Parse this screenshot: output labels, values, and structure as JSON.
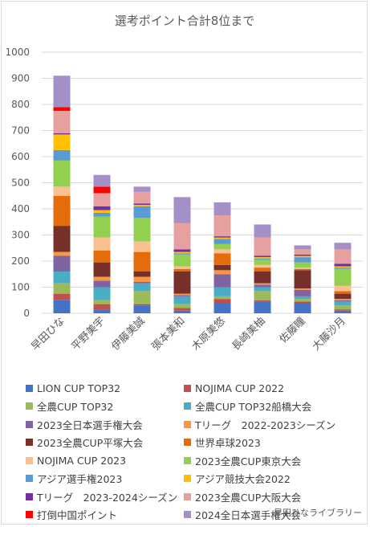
{
  "footer": "早田ひなライブラリー",
  "chart_data": {
    "type": "bar",
    "stacked": true,
    "title": "選考ポイント合計8位まで",
    "ylim": [
      0,
      1000
    ],
    "yticks": [
      0,
      100,
      200,
      300,
      400,
      500,
      600,
      700,
      800,
      900,
      1000
    ],
    "grid": true,
    "legend_position": "bottom",
    "categories": [
      "早田ひな",
      "平野美宇",
      "伊藤美誠",
      "張本美和",
      "木原美悠",
      "長崎美柚",
      "佐藤瞳",
      "大藤沙月"
    ],
    "series": [
      {
        "name": "LION CUP TOP32",
        "color": "#4472c4",
        "values": [
          50,
          15,
          30,
          10,
          40,
          45,
          40,
          10
        ]
      },
      {
        "name": "NOJIMA CUP 2022",
        "color": "#c0504d",
        "values": [
          25,
          20,
          5,
          10,
          15,
          5,
          5,
          5
        ]
      },
      {
        "name": "全農CUP TOP32",
        "color": "#9bbb59",
        "values": [
          40,
          15,
          50,
          15,
          10,
          35,
          10,
          15
        ]
      },
      {
        "name": "全農CUP TOP32船橋大会",
        "color": "#4bacc6",
        "values": [
          45,
          50,
          30,
          30,
          35,
          15,
          10,
          15
        ]
      },
      {
        "name": "2023全日本選手権大会",
        "color": "#8064a2",
        "values": [
          60,
          25,
          5,
          5,
          50,
          10,
          25,
          5
        ]
      },
      {
        "name": "Tリーグ　2022-2023シーズン",
        "color": "#f79646",
        "values": [
          15,
          15,
          20,
          5,
          15,
          5,
          5,
          5
        ]
      },
      {
        "name": "2023全農CUP平塚大会",
        "color": "#77302a",
        "values": [
          100,
          55,
          20,
          85,
          20,
          45,
          70,
          20
        ]
      },
      {
        "name": "世界卓球2023",
        "color": "#e46c0a",
        "values": [
          115,
          45,
          75,
          10,
          45,
          15,
          5,
          10
        ]
      },
      {
        "name": "NOJIMA CUP 2023",
        "color": "#fac090",
        "values": [
          35,
          50,
          40,
          10,
          15,
          10,
          5,
          20
        ]
      },
      {
        "name": "2023全農CUP東京大会",
        "color": "#92d050",
        "values": [
          100,
          80,
          90,
          45,
          20,
          20,
          20,
          65
        ]
      },
      {
        "name": "アジア選手権2023",
        "color": "#5b9bd5",
        "values": [
          40,
          15,
          45,
          5,
          20,
          5,
          20,
          5
        ]
      },
      {
        "name": "アジア競技大会2022",
        "color": "#ffc000",
        "values": [
          60,
          10,
          5,
          5,
          5,
          5,
          5,
          5
        ]
      },
      {
        "name": "Tリーグ　2023-2024シーズン",
        "color": "#7030a0",
        "values": [
          5,
          15,
          5,
          10,
          5,
          5,
          5,
          10
        ]
      },
      {
        "name": "2023全農CUP大阪大会",
        "color": "#e6a0a0",
        "values": [
          85,
          50,
          45,
          100,
          80,
          70,
          20,
          55
        ]
      },
      {
        "name": "打倒中国ポイント",
        "color": "#ff0000",
        "values": [
          15,
          25,
          0,
          0,
          0,
          0,
          0,
          0
        ]
      },
      {
        "name": "2024全日本選手権大会",
        "color": "#a58fc7",
        "values": [
          120,
          45,
          20,
          100,
          50,
          50,
          15,
          25
        ]
      }
    ]
  }
}
